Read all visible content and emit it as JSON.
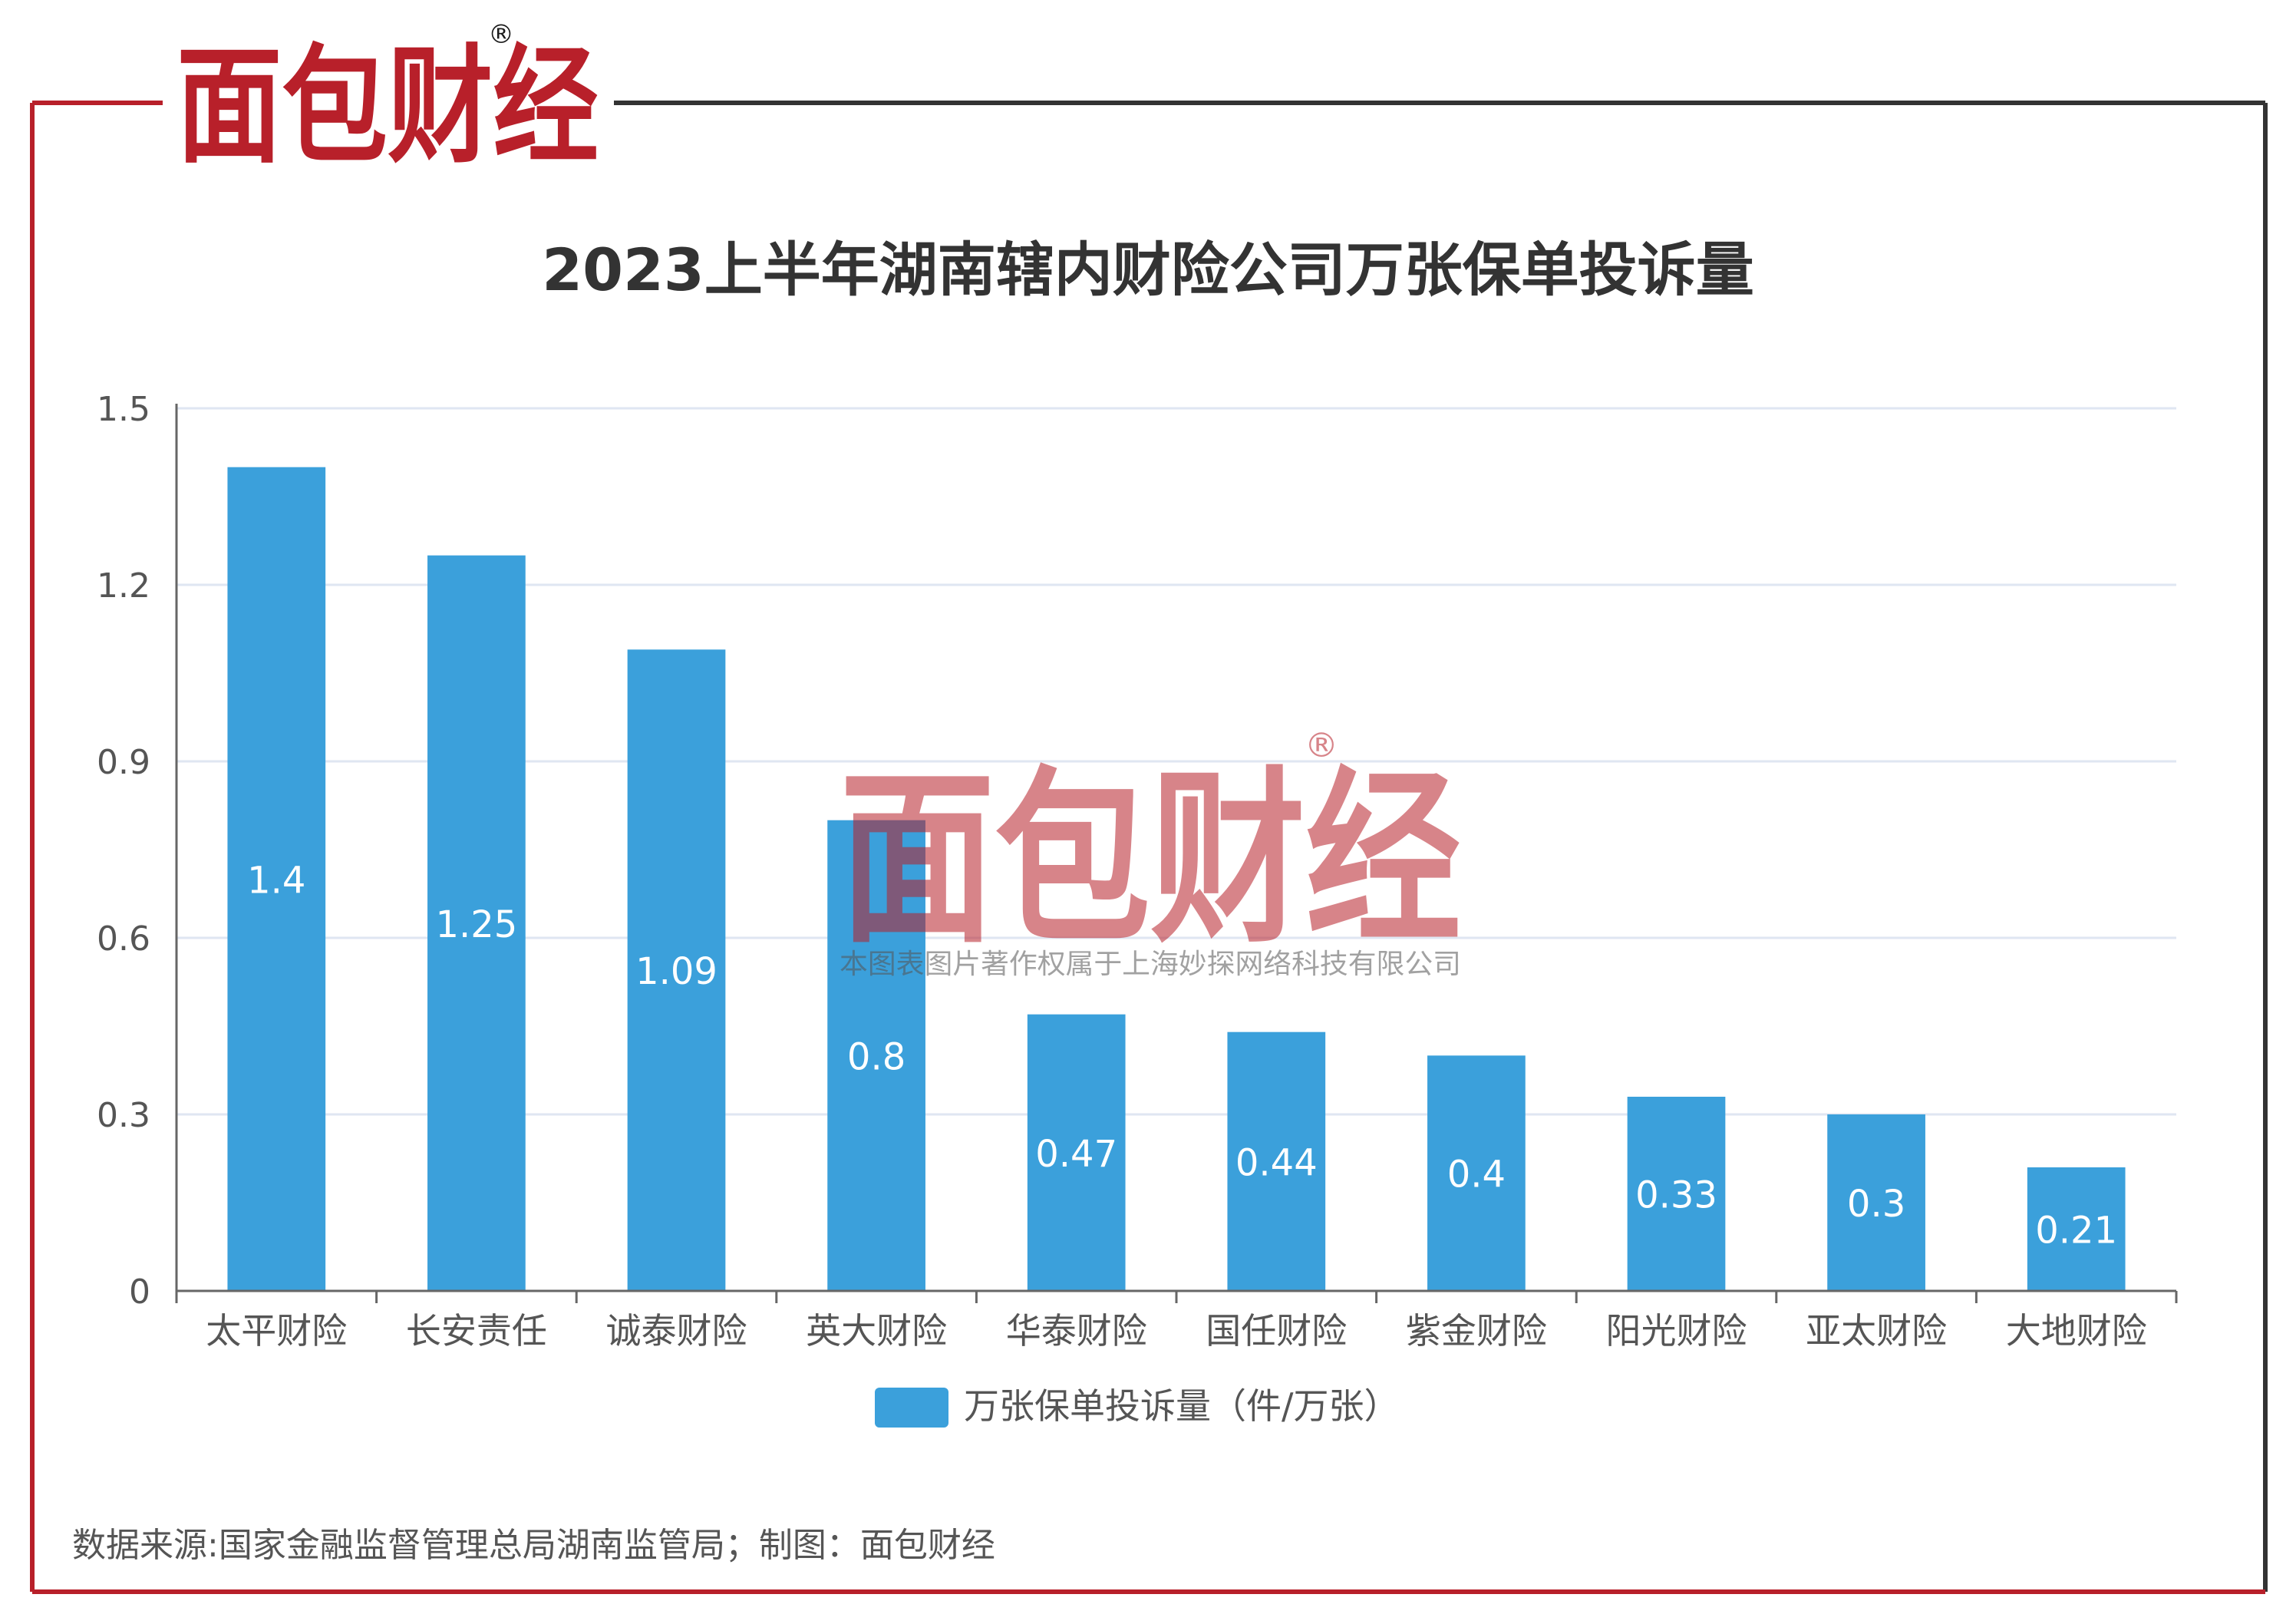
{
  "brand": {
    "logo_text": "面包财经",
    "registered_mark": "®",
    "watermark_text": "面包财经",
    "watermark_caption": "本图表图片著作权属于上海妙探网络科技有限公司"
  },
  "colors": {
    "bar": "#3ba0db",
    "frame_red": "#b8202a",
    "frame_dark": "#333333",
    "logo_red": "#b8202a",
    "logo_dark": "#1a1a1a",
    "title": "#333333",
    "axis_text": "#555555",
    "grid": "#dfe6f2",
    "source_text": "#555555"
  },
  "chart_data": {
    "type": "bar",
    "title": "2023上半年湖南辖内财险公司万张保单投诉量",
    "categories": [
      "太平财险",
      "长安责任",
      "诚泰财险",
      "英大财险",
      "华泰财险",
      "国任财险",
      "紫金财险",
      "阳光财险",
      "亚太财险",
      "大地财险"
    ],
    "series": [
      {
        "name": "万张保单投诉量（件/万张）",
        "values": [
          1.4,
          1.25,
          1.09,
          0.8,
          0.47,
          0.44,
          0.4,
          0.33,
          0.3,
          0.21
        ],
        "labels": [
          "1.4",
          "1.25",
          "1.09",
          "0.8",
          "0.47",
          "0.44",
          "0.4",
          "0.33",
          "0.3",
          "0.21"
        ]
      }
    ],
    "yticks": [
      "0",
      "0.3",
      "0.6",
      "0.9",
      "1.2",
      "1.5"
    ],
    "ylim": [
      0,
      1.5
    ],
    "grid": true,
    "legend": "bottom-center",
    "xlabel": "",
    "ylabel": ""
  },
  "source": "数据来源:国家金融监督管理总局湖南监管局；制图：面包财经"
}
